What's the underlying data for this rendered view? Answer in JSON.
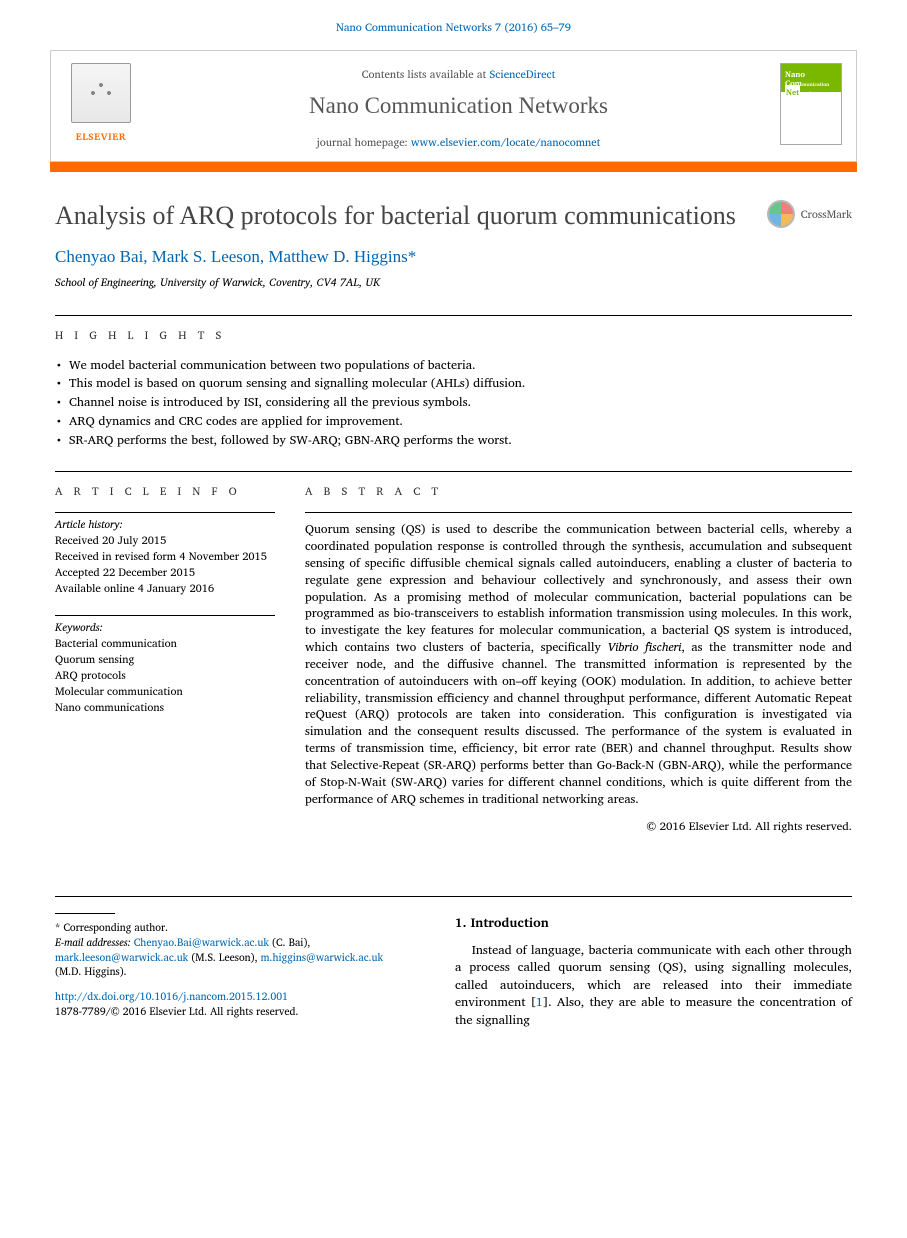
{
  "citation": "Nano Communication Networks 7 (2016) 65–79",
  "header": {
    "contents_prefix": "Contents lists available at ",
    "contents_link": "ScienceDirect",
    "journal_name": "Nano Communication Networks",
    "homepage_prefix": "journal homepage: ",
    "homepage_url": "www.elsevier.com/locate/nanocomnet",
    "publisher": "ELSEVIER",
    "cover_line1": "Nano",
    "cover_line2": "Com",
    "cover_line3": "Net"
  },
  "title": "Analysis of ARQ protocols for bacterial quorum communications",
  "crossmark": "CrossMark",
  "authors": "Chenyao Bai, Mark S. Leeson, Matthew D. Higgins",
  "author_marker": "*",
  "affiliation": "School of Engineering, University of Warwick, Coventry, CV4 7AL, UK",
  "highlights": {
    "heading": "H I G H L I G H T S",
    "items": [
      "We model bacterial communication between two populations of bacteria.",
      "This model is based on quorum sensing and signalling molecular (AHLs) diffusion.",
      "Channel noise is introduced by ISI, considering all the previous symbols.",
      "ARQ dynamics and CRC codes are applied for improvement.",
      "SR-ARQ performs the best, followed by SW-ARQ; GBN-ARQ performs the worst."
    ]
  },
  "article_info": {
    "heading": "A R T I C L E   I N F O",
    "history_label": "Article history:",
    "history": [
      "Received 20 July 2015",
      "Received in revised form 4 November 2015",
      "Accepted 22 December 2015",
      "Available online 4 January 2016"
    ],
    "keywords_label": "Keywords:",
    "keywords": [
      "Bacterial communication",
      "Quorum sensing",
      "ARQ protocols",
      "Molecular communication",
      "Nano communications"
    ]
  },
  "abstract": {
    "heading": "A B S T R A C T",
    "text": "Quorum sensing (QS) is used to describe the communication between bacterial cells, whereby a coordinated population response is controlled through the synthesis, accumulation and subsequent sensing of specific diffusible chemical signals called autoinducers, enabling a cluster of bacteria to regulate gene expression and behaviour collectively and synchronously, and assess their own population. As a promising method of molecular communication, bacterial populations can be programmed as bio-transceivers to establish information transmission using molecules. In this work, to investigate the key features for molecular communication, a bacterial QS system is introduced, which contains two clusters of bacteria, specifically Vibrio fischeri, as the transmitter node and receiver node, and the diffusive channel. The transmitted information is represented by the concentration of autoinducers with on–off keying (OOK) modulation. In addition, to achieve better reliability, transmission efficiency and channel throughput performance, different Automatic Repeat reQuest (ARQ) protocols are taken into consideration. This configuration is investigated via simulation and the consequent results discussed. The performance of the system is evaluated in terms of transmission time, efficiency, bit error rate (BER) and channel throughput. Results show that Selective-Repeat (SR-ARQ) performs better than Go-Back-N (GBN-ARQ), while the performance of Stop-N-Wait (SW-ARQ) varies for different channel conditions, which is quite different from the performance of ARQ schemes in traditional networking areas.",
    "species": "Vibrio fischeri",
    "copyright": "© 2016 Elsevier Ltd. All rights reserved."
  },
  "footer": {
    "corresponding": "Corresponding author.",
    "email_label": "E-mail addresses:",
    "emails": [
      {
        "addr": "Chenyao.Bai@warwick.ac.uk",
        "who": "(C. Bai),"
      },
      {
        "addr": "mark.leeson@warwick.ac.uk",
        "who": "(M.S. Leeson),"
      },
      {
        "addr": "m.higgins@warwick.ac.uk",
        "who": ""
      }
    ],
    "email_tail": "(M.D. Higgins).",
    "doi_url": "http://dx.doi.org/10.1016/j.nancom.2015.12.001",
    "issn_line": "1878-7789/© 2016 Elsevier Ltd. All rights reserved."
  },
  "intro": {
    "heading": "1.  Introduction",
    "para": "Instead of language, bacteria communicate with each other through a process called quorum sensing (QS), using signalling molecules, called autoinducers, which are released into their immediate environment [1].  Also, they are able to measure the concentration of the signalling",
    "ref": "1"
  }
}
